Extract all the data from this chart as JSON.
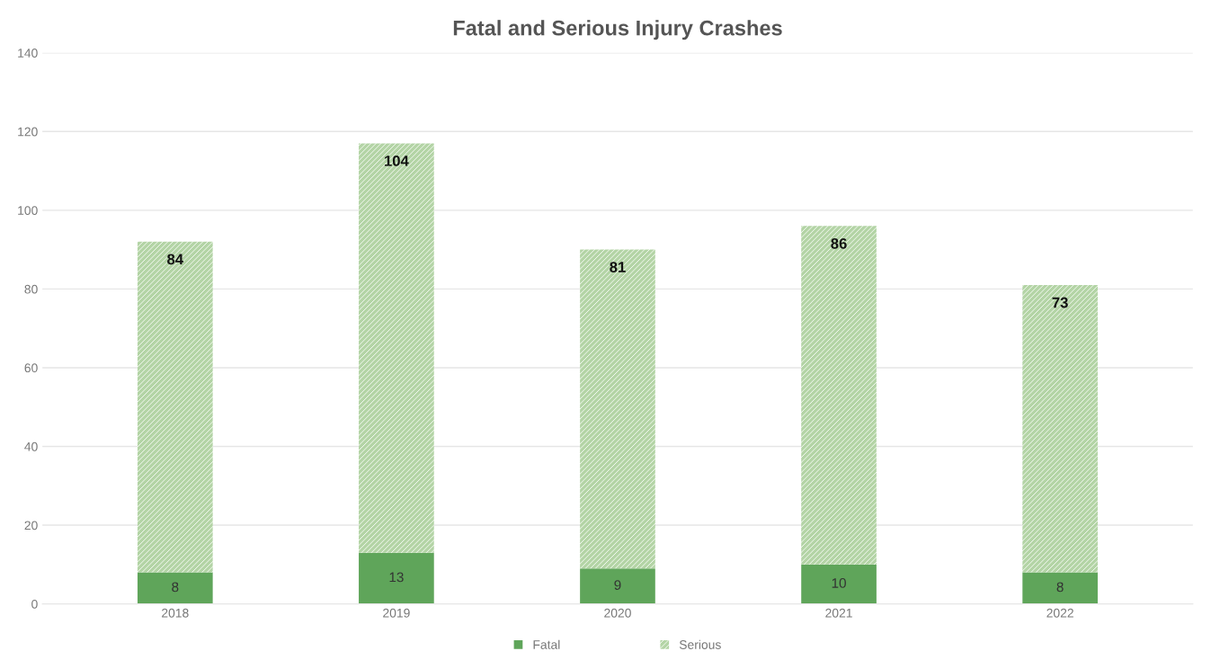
{
  "chart_data": {
    "type": "bar",
    "title": "Fatal and Serious Injury Crashes",
    "categories": [
      "2018",
      "2019",
      "2020",
      "2021",
      "2022"
    ],
    "stacked": true,
    "data_labels": true,
    "grid": "y",
    "legend": "bottom",
    "ylim": [
      0,
      140
    ],
    "yticks": [
      0,
      20,
      40,
      60,
      80,
      100,
      120,
      140
    ],
    "series": [
      {
        "name": "Fatal",
        "color": "#5fa55a",
        "values": [
          8,
          13,
          9,
          10,
          8
        ]
      },
      {
        "name": "Serious",
        "color": "#b3d4a5",
        "values": [
          84,
          104,
          81,
          86,
          73
        ]
      }
    ]
  }
}
